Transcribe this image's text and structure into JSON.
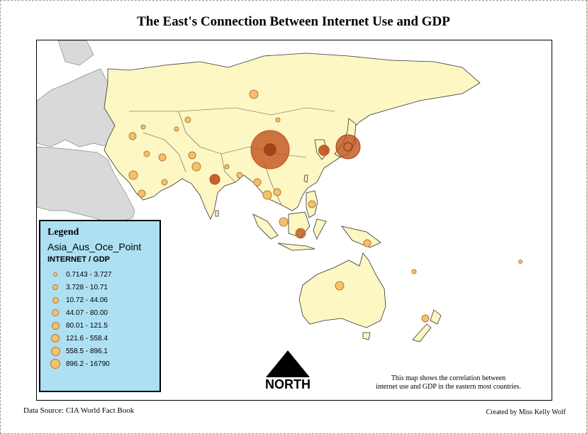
{
  "title": "The East's Connection Between Internet Use and GDP",
  "legend": {
    "title": "Legend",
    "layer_name": "Asia_Aus_Oce_Point",
    "field_name": "INTERNET / GDP",
    "classes": [
      {
        "label": "0.7143 - 3.727"
      },
      {
        "label": "3.728 - 10.71"
      },
      {
        "label": "10.72 - 44.06"
      },
      {
        "label": "44.07 - 80.00"
      },
      {
        "label": "80.01 - 121.5"
      },
      {
        "label": "121.6 - 558.4"
      },
      {
        "label": "558.5 - 896.1"
      },
      {
        "label": "896.2 - 16790"
      }
    ]
  },
  "north_arrow": {
    "label": "NORTH"
  },
  "note": {
    "line1": "This map shows the correlation between",
    "line2": "internet use and GDP in the eastern most countries."
  },
  "footer": {
    "source": "Data Source: CIA World Fact Book",
    "credit": "Created by Miss Kelly Wolf"
  },
  "colors": {
    "land_study": "#fdf7c3",
    "land_other": "#d9d9d9",
    "symbol_small": "#f5c16c",
    "symbol_large": "#c0511e",
    "legend_bg": "#aee0f4"
  },
  "icons": [
    "north-arrow-icon"
  ]
}
